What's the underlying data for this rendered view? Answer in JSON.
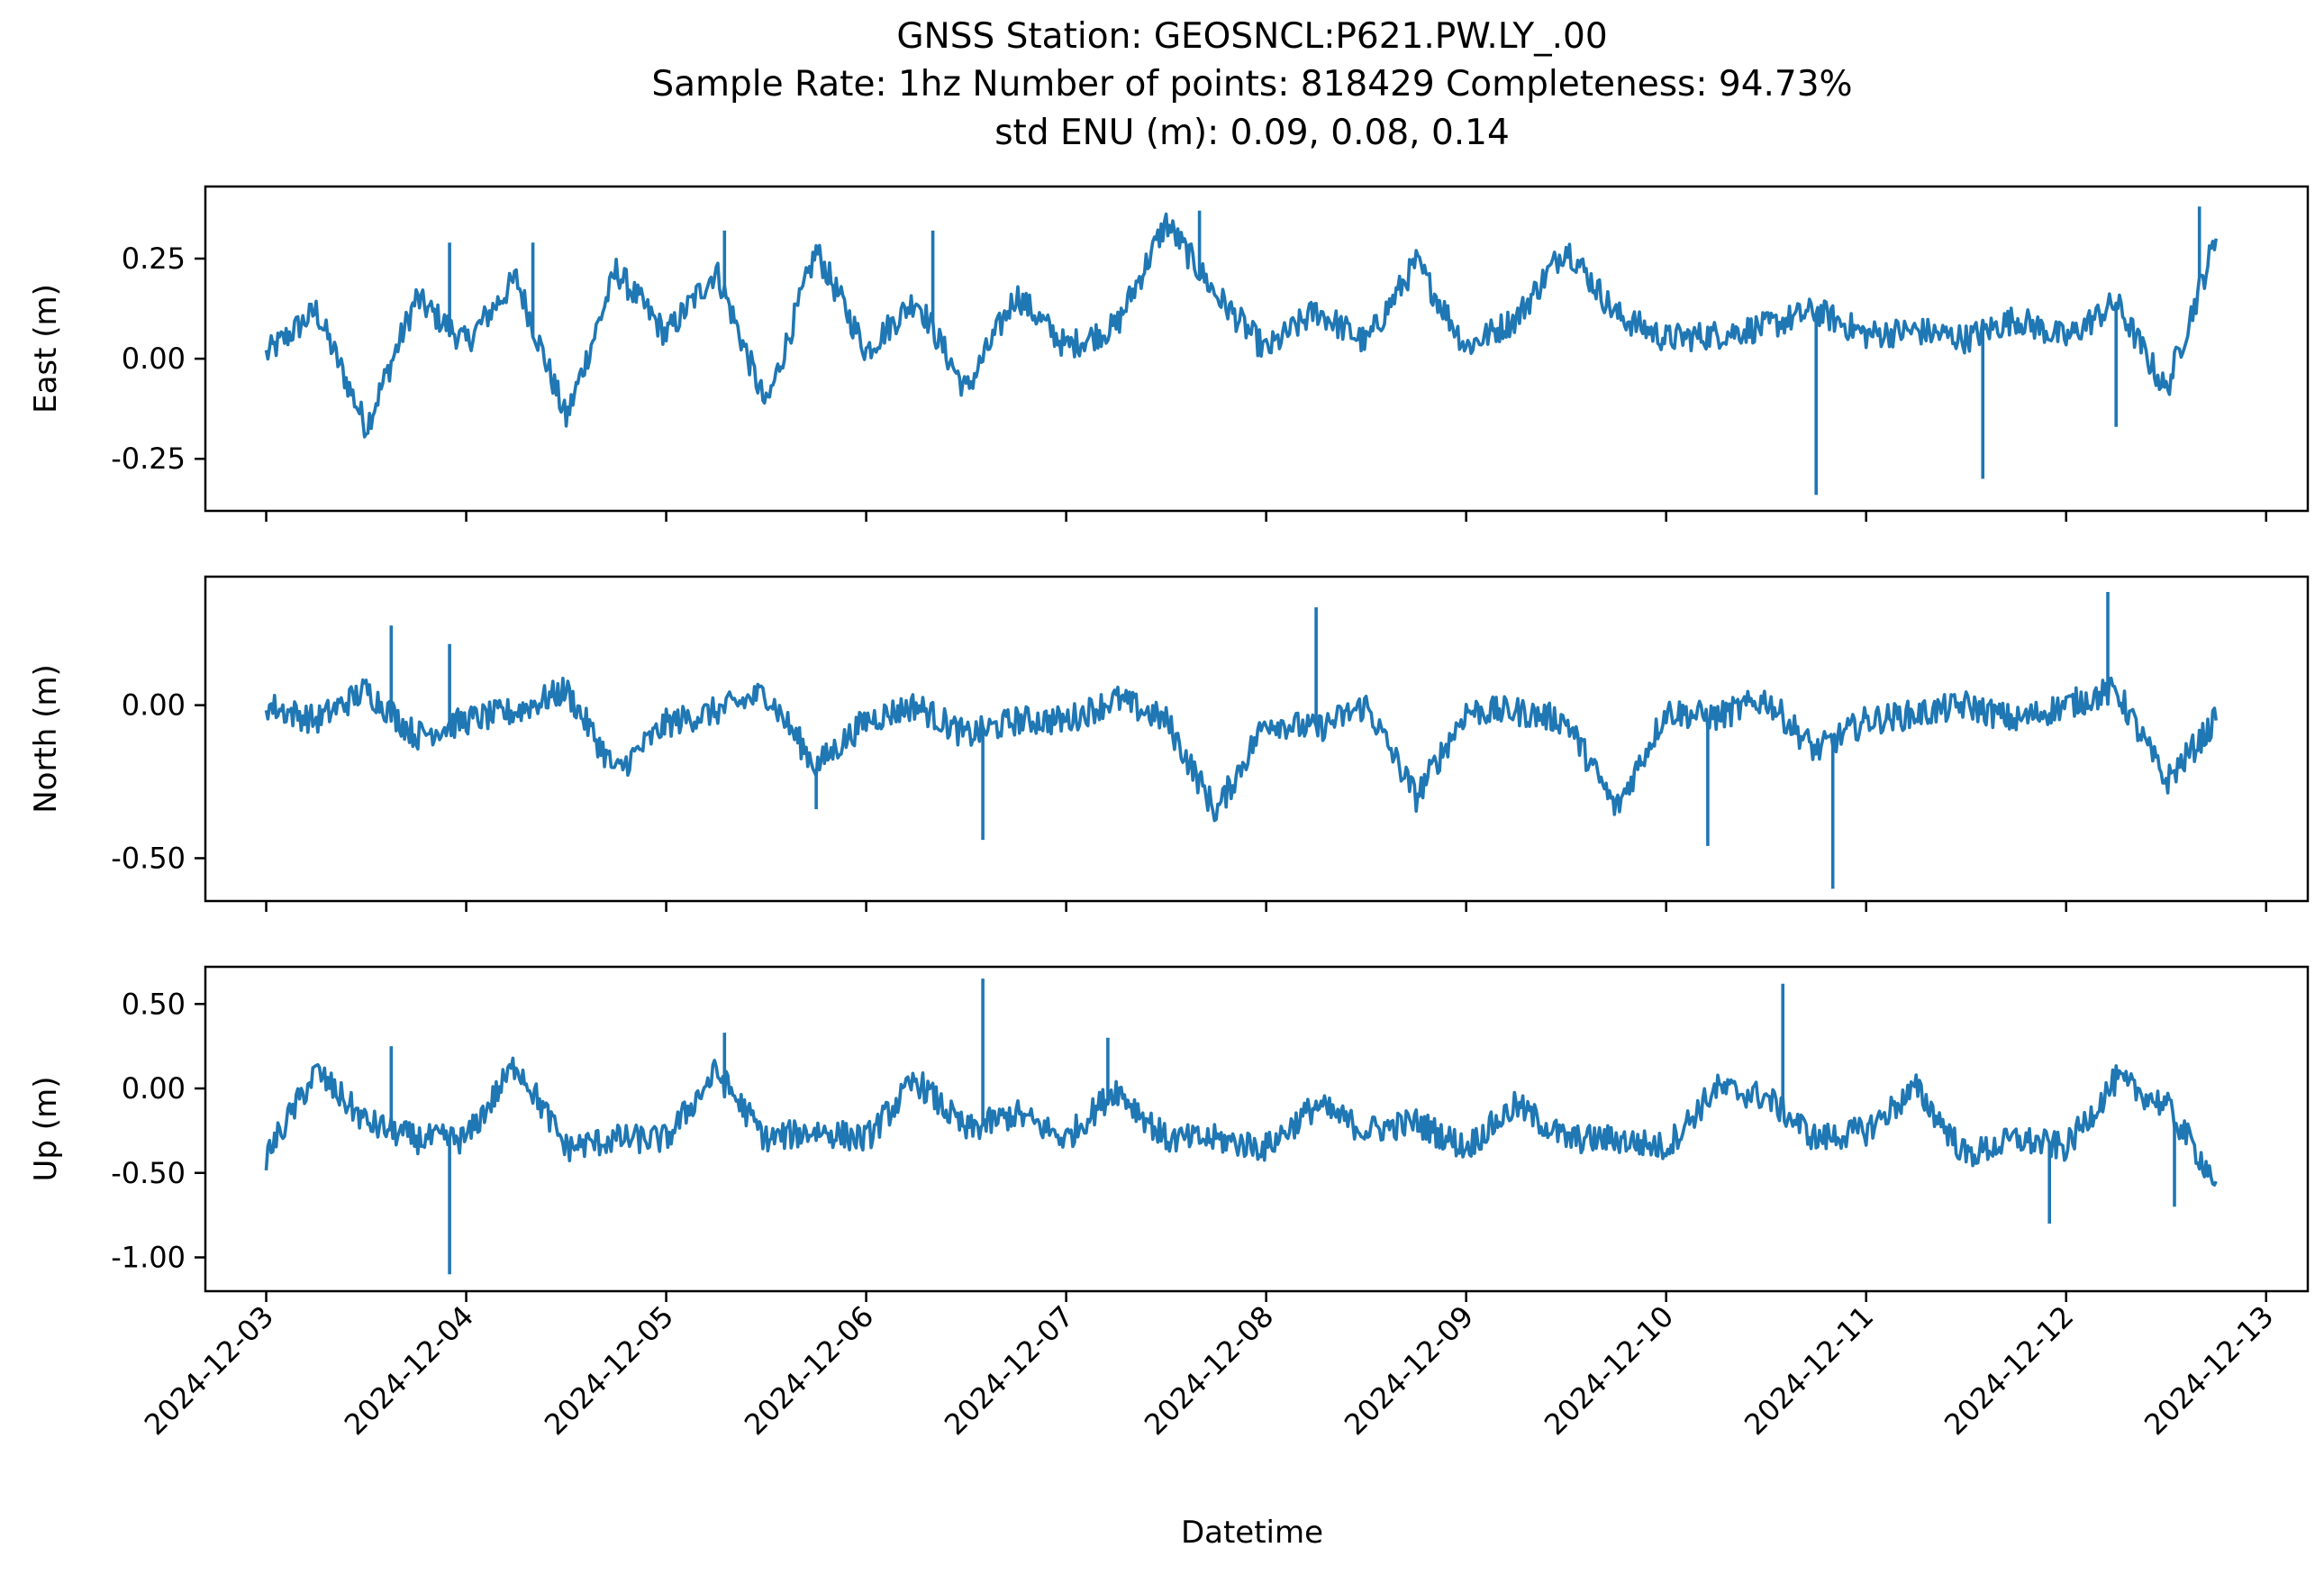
{
  "chart_data": {
    "type": "line",
    "title": "GNSS Station: GEOSNCL:P621.PW.LY_.00",
    "subtitle": "Sample Rate: 1hz   Number of points: 818429    Completeness:  94.73%",
    "std_line": "std ENU (m):  0.09, 0.08, 0.14",
    "xlabel": "Datetime",
    "x_tick_labels": [
      "2024-12-03",
      "2024-12-04",
      "2024-12-05",
      "2024-12-06",
      "2024-12-07",
      "2024-12-08",
      "2024-12-09",
      "2024-12-10",
      "2024-12-11",
      "2024-12-12",
      "2024-12-13"
    ],
    "x_range": [
      "2024-12-03T00:00",
      "2024-12-12T18:00"
    ],
    "color": "#1f77b4",
    "grid": false,
    "panels": [
      {
        "name": "east",
        "ylabel": "East (m)",
        "ylim": [
          -0.38,
          0.43
        ],
        "y_ticks": [
          0.25,
          0.0,
          -0.25
        ],
        "y_tick_labels": [
          "0.25",
          "0.00",
          "-0.25"
        ],
        "x": [
          "2024-12-03T00:00",
          "2024-12-03T06:00",
          "2024-12-03T12:00",
          "2024-12-03T18:00",
          "2024-12-04T00:00",
          "2024-12-04T06:00",
          "2024-12-04T12:00",
          "2024-12-04T18:00",
          "2024-12-05T00:00",
          "2024-12-05T06:00",
          "2024-12-05T12:00",
          "2024-12-05T18:00",
          "2024-12-06T00:00",
          "2024-12-06T06:00",
          "2024-12-06T12:00",
          "2024-12-06T18:00",
          "2024-12-07T00:00",
          "2024-12-07T06:00",
          "2024-12-07T12:00",
          "2024-12-07T18:00",
          "2024-12-08T00:00",
          "2024-12-08T06:00",
          "2024-12-08T12:00",
          "2024-12-08T18:00",
          "2024-12-09T00:00",
          "2024-12-09T06:00",
          "2024-12-09T12:00",
          "2024-12-09T18:00",
          "2024-12-10T00:00",
          "2024-12-10T06:00",
          "2024-12-10T12:00",
          "2024-12-10T18:00",
          "2024-12-11T00:00",
          "2024-12-11T06:00",
          "2024-12-11T12:00",
          "2024-12-11T18:00",
          "2024-12-12T00:00",
          "2024-12-12T06:00",
          "2024-12-12T12:00",
          "2024-12-12T18:00"
        ],
        "values": [
          0.01,
          0.12,
          -0.17,
          0.15,
          0.04,
          0.2,
          -0.15,
          0.22,
          0.06,
          0.22,
          -0.12,
          0.27,
          0.02,
          0.15,
          -0.08,
          0.16,
          0.03,
          0.08,
          0.34,
          0.16,
          0.02,
          0.12,
          0.04,
          0.24,
          0.03,
          0.1,
          0.28,
          0.11,
          0.05,
          0.06,
          0.08,
          0.12,
          0.06,
          0.07,
          0.05,
          0.1,
          0.05,
          0.14,
          -0.08,
          0.3
        ],
        "spikes": [
          {
            "x": "2024-12-03T22:00",
            "y": 0.29
          },
          {
            "x": "2024-12-04T08:00",
            "y": 0.29
          },
          {
            "x": "2024-12-05T07:00",
            "y": 0.32
          },
          {
            "x": "2024-12-06T08:00",
            "y": 0.32
          },
          {
            "x": "2024-12-07T16:00",
            "y": 0.37
          },
          {
            "x": "2024-12-10T18:00",
            "y": -0.34
          },
          {
            "x": "2024-12-11T14:00",
            "y": -0.3
          },
          {
            "x": "2024-12-12T06:00",
            "y": -0.17
          },
          {
            "x": "2024-12-12T16:00",
            "y": 0.38
          }
        ]
      },
      {
        "name": "north",
        "ylabel": "North (m)",
        "ylim": [
          -0.64,
          0.42
        ],
        "y_ticks": [
          0.0,
          -0.5
        ],
        "y_tick_labels": [
          "0.00",
          "-0.50"
        ],
        "x": [
          "2024-12-03T00:00",
          "2024-12-03T06:00",
          "2024-12-03T12:00",
          "2024-12-03T18:00",
          "2024-12-04T00:00",
          "2024-12-04T06:00",
          "2024-12-04T12:00",
          "2024-12-04T18:00",
          "2024-12-05T00:00",
          "2024-12-05T06:00",
          "2024-12-05T12:00",
          "2024-12-05T18:00",
          "2024-12-06T00:00",
          "2024-12-06T06:00",
          "2024-12-06T12:00",
          "2024-12-06T18:00",
          "2024-12-07T00:00",
          "2024-12-07T06:00",
          "2024-12-07T12:00",
          "2024-12-07T18:00",
          "2024-12-08T00:00",
          "2024-12-08T06:00",
          "2024-12-08T12:00",
          "2024-12-08T18:00",
          "2024-12-09T00:00",
          "2024-12-09T06:00",
          "2024-12-09T12:00",
          "2024-12-09T18:00",
          "2024-12-10T00:00",
          "2024-12-10T06:00",
          "2024-12-10T12:00",
          "2024-12-10T18:00",
          "2024-12-11T00:00",
          "2024-12-11T06:00",
          "2024-12-11T12:00",
          "2024-12-11T18:00",
          "2024-12-12T00:00",
          "2024-12-12T06:00",
          "2024-12-12T12:00",
          "2024-12-12T18:00"
        ],
        "values": [
          0.0,
          -0.05,
          0.05,
          -0.1,
          -0.05,
          -0.02,
          0.05,
          -0.22,
          -0.06,
          -0.02,
          0.04,
          -0.2,
          -0.05,
          0.0,
          -0.1,
          -0.05,
          -0.05,
          0.02,
          -0.05,
          -0.35,
          -0.05,
          -0.08,
          0.0,
          -0.3,
          -0.02,
          -0.02,
          -0.05,
          -0.34,
          -0.02,
          -0.04,
          0.02,
          -0.15,
          -0.05,
          -0.03,
          0.0,
          -0.05,
          0.0,
          0.05,
          -0.25,
          -0.05
        ],
        "spikes": [
          {
            "x": "2024-12-03T15:00",
            "y": 0.26
          },
          {
            "x": "2024-12-03T22:00",
            "y": 0.2
          },
          {
            "x": "2024-12-05T18:00",
            "y": -0.34
          },
          {
            "x": "2024-12-06T14:00",
            "y": -0.44
          },
          {
            "x": "2024-12-08T06:00",
            "y": 0.32
          },
          {
            "x": "2024-12-10T05:00",
            "y": -0.46
          },
          {
            "x": "2024-12-10T20:00",
            "y": -0.6
          },
          {
            "x": "2024-12-12T05:00",
            "y": 0.37
          }
        ]
      },
      {
        "name": "up",
        "ylabel": "Up (m)",
        "ylim": [
          -1.2,
          0.72
        ],
        "y_ticks": [
          0.5,
          0.0,
          -0.5,
          -1.0
        ],
        "y_tick_labels": [
          "0.50",
          "0.00",
          "-0.50",
          "-1.00"
        ],
        "x": [
          "2024-12-03T00:00",
          "2024-12-03T06:00",
          "2024-12-03T12:00",
          "2024-12-03T18:00",
          "2024-12-04T00:00",
          "2024-12-04T06:00",
          "2024-12-04T12:00",
          "2024-12-04T18:00",
          "2024-12-05T00:00",
          "2024-12-05T06:00",
          "2024-12-05T12:00",
          "2024-12-05T18:00",
          "2024-12-06T00:00",
          "2024-12-06T06:00",
          "2024-12-06T12:00",
          "2024-12-06T18:00",
          "2024-12-07T00:00",
          "2024-12-07T06:00",
          "2024-12-07T12:00",
          "2024-12-07T18:00",
          "2024-12-08T00:00",
          "2024-12-08T06:00",
          "2024-12-08T12:00",
          "2024-12-08T18:00",
          "2024-12-09T00:00",
          "2024-12-09T06:00",
          "2024-12-09T12:00",
          "2024-12-09T18:00",
          "2024-12-10T00:00",
          "2024-12-10T06:00",
          "2024-12-10T12:00",
          "2024-12-10T18:00",
          "2024-12-11T00:00",
          "2024-12-11T06:00",
          "2024-12-11T12:00",
          "2024-12-11T18:00",
          "2024-12-12T00:00",
          "2024-12-12T06:00",
          "2024-12-12T12:00",
          "2024-12-12T18:00"
        ],
        "values": [
          -0.4,
          0.1,
          -0.2,
          -0.3,
          -0.3,
          0.15,
          -0.35,
          -0.3,
          -0.3,
          0.1,
          -0.3,
          -0.25,
          -0.3,
          0.05,
          -0.25,
          -0.15,
          -0.3,
          0.0,
          -0.3,
          -0.3,
          -0.35,
          -0.1,
          -0.25,
          -0.2,
          -0.35,
          -0.1,
          -0.3,
          -0.3,
          -0.35,
          0.0,
          -0.05,
          -0.3,
          -0.25,
          0.0,
          -0.4,
          -0.3,
          -0.35,
          0.05,
          -0.1,
          -0.55
        ],
        "spikes": [
          {
            "x": "2024-12-03T15:00",
            "y": 0.25
          },
          {
            "x": "2024-12-03T22:00",
            "y": -1.1
          },
          {
            "x": "2024-12-05T07:00",
            "y": 0.33
          },
          {
            "x": "2024-12-06T14:00",
            "y": 0.65
          },
          {
            "x": "2024-12-07T05:00",
            "y": 0.3
          },
          {
            "x": "2024-12-10T14:00",
            "y": 0.62
          },
          {
            "x": "2024-12-11T22:00",
            "y": -0.8
          },
          {
            "x": "2024-12-12T13:00",
            "y": -0.7
          }
        ]
      }
    ]
  }
}
